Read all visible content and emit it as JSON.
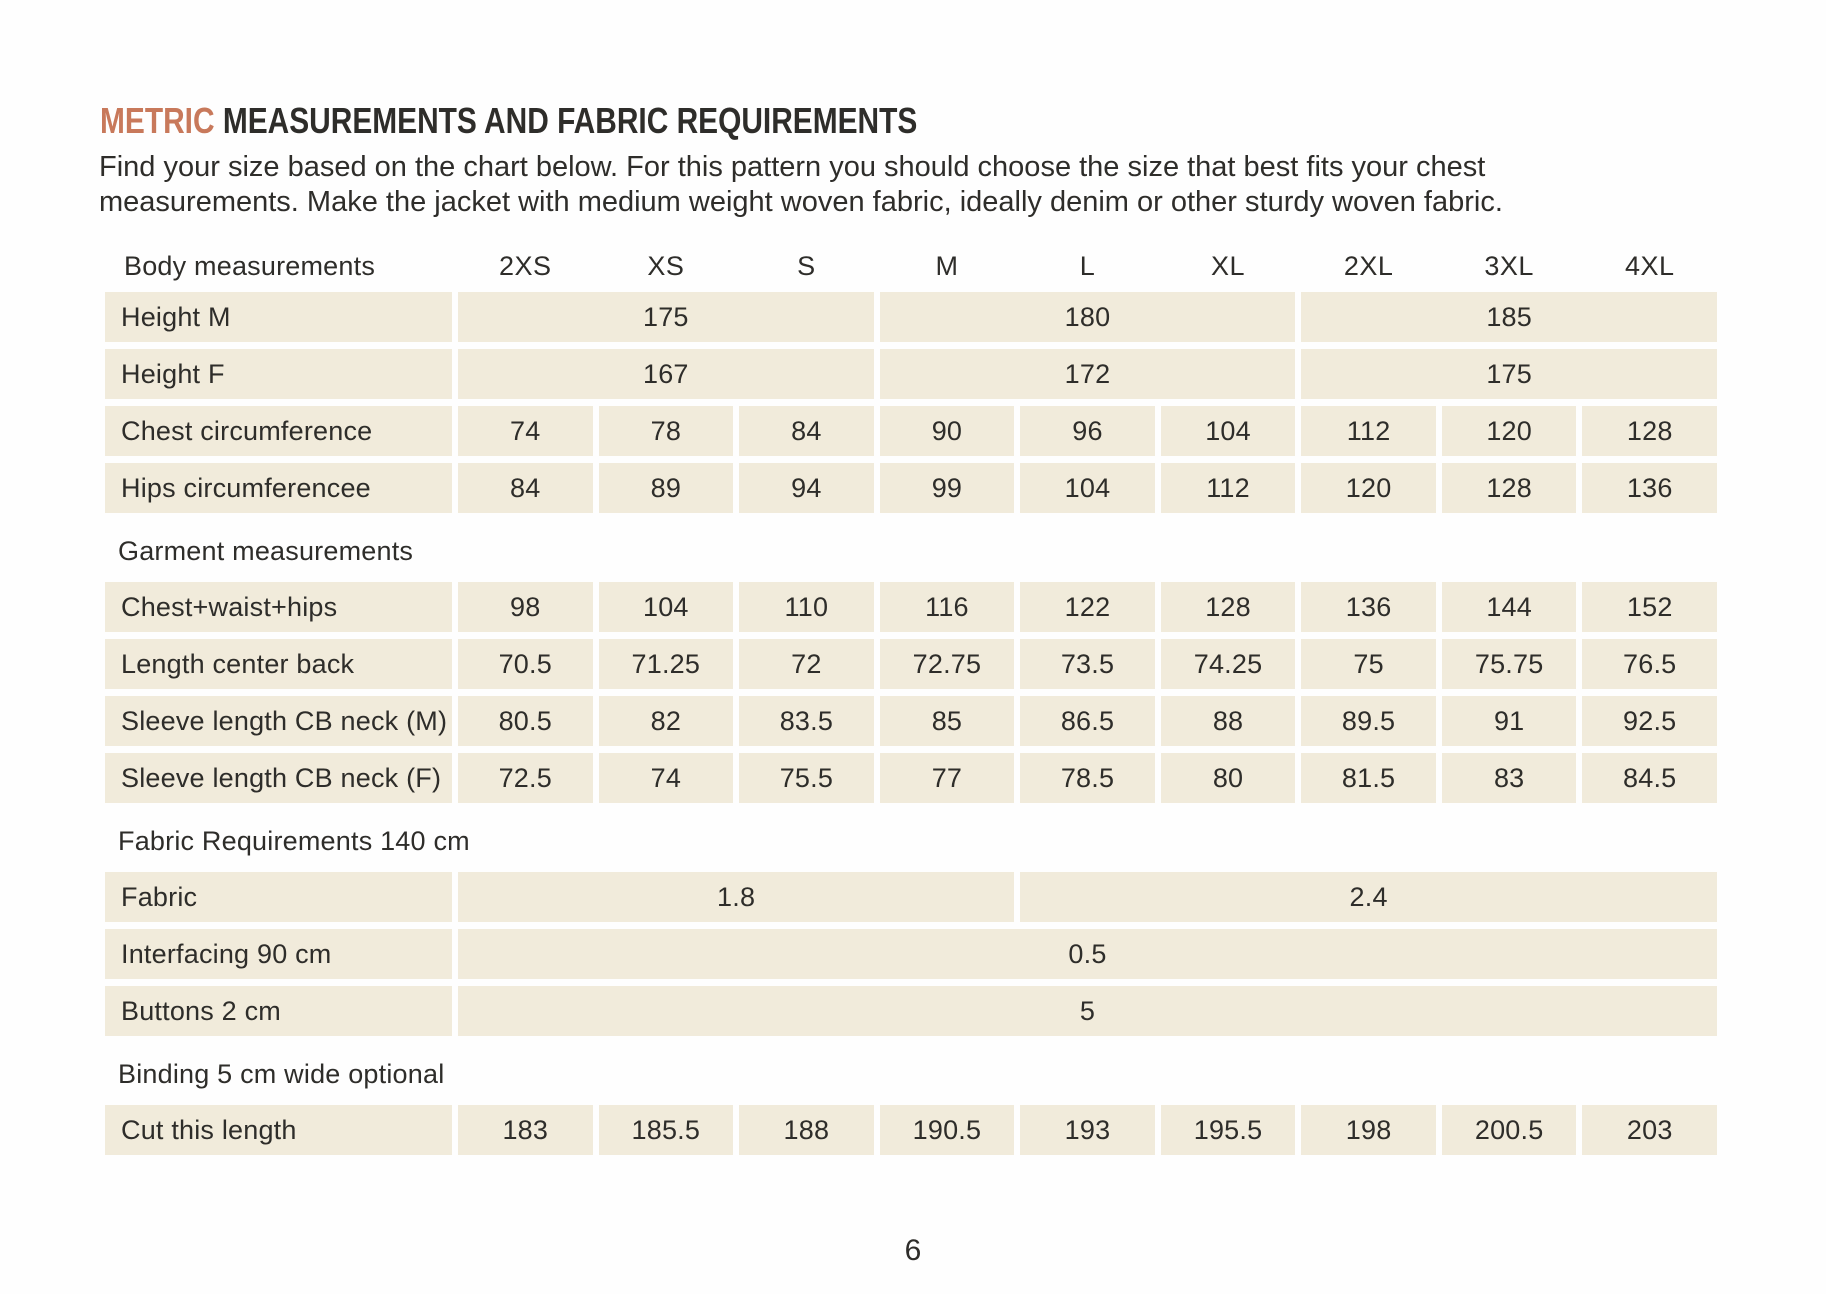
{
  "page": {
    "title_accent": "METRIC",
    "title_rest": "MEASUREMENTS AND FABRIC REQUIREMENTS",
    "intro_line1": "Find your size based on the chart below. For this pattern you should choose the size that best fits your chest",
    "intro_line2": "measurements. Make the jacket with medium weight woven fabric, ideally denim or other sturdy woven fabric.",
    "page_number": "6"
  },
  "colors": {
    "accent_orange": "#C8795B",
    "cell_beige": "#F1EBDB",
    "text_dark": "#2E2D2A"
  },
  "table": {
    "header_label": "Body measurements",
    "sizes": [
      "2XS",
      "XS",
      "S",
      "M",
      "L",
      "XL",
      "2XL",
      "3XL",
      "4XL"
    ],
    "section_garment": "Garment measurements",
    "section_fabric": "Fabric Requirements 140 cm",
    "section_binding": "Binding 5 cm wide optional",
    "rows": {
      "height_m": {
        "label": "Height M",
        "values": [
          "175",
          "180",
          "185"
        ]
      },
      "height_f": {
        "label": "Height F",
        "values": [
          "167",
          "172",
          "175"
        ]
      },
      "chest": {
        "label": "Chest circumference",
        "values": [
          "74",
          "78",
          "84",
          "90",
          "96",
          "104",
          "112",
          "120",
          "128"
        ]
      },
      "hips": {
        "label": "Hips circumferencee",
        "values": [
          "84",
          "89",
          "94",
          "99",
          "104",
          "112",
          "120",
          "128",
          "136"
        ]
      },
      "cwh": {
        "label": "Chest+waist+hips",
        "values": [
          "98",
          "104",
          "110",
          "116",
          "122",
          "128",
          "136",
          "144",
          "152"
        ]
      },
      "lcb": {
        "label": "Length center back",
        "values": [
          "70.5",
          "71.25",
          "72",
          "72.75",
          "73.5",
          "74.25",
          "75",
          "75.75",
          "76.5"
        ]
      },
      "sleeve_m": {
        "label": "Sleeve length CB neck (M)",
        "values": [
          "80.5",
          "82",
          "83.5",
          "85",
          "86.5",
          "88",
          "89.5",
          "91",
          "92.5"
        ]
      },
      "sleeve_f": {
        "label": "Sleeve length CB neck (F)",
        "values": [
          "72.5",
          "74",
          "75.5",
          "77",
          "78.5",
          "80",
          "81.5",
          "83",
          "84.5"
        ]
      },
      "fabric": {
        "label": "Fabric",
        "values": [
          "1.8",
          "2.4"
        ]
      },
      "interfacing": {
        "label": "Interfacing 90 cm",
        "values": [
          "0.5"
        ]
      },
      "buttons": {
        "label": "Buttons 2 cm",
        "values": [
          "5"
        ]
      },
      "cut": {
        "label": "Cut this length",
        "values": [
          "183",
          "185.5",
          "188",
          "190.5",
          "193",
          "195.5",
          "198",
          "200.5",
          "203"
        ]
      }
    }
  }
}
